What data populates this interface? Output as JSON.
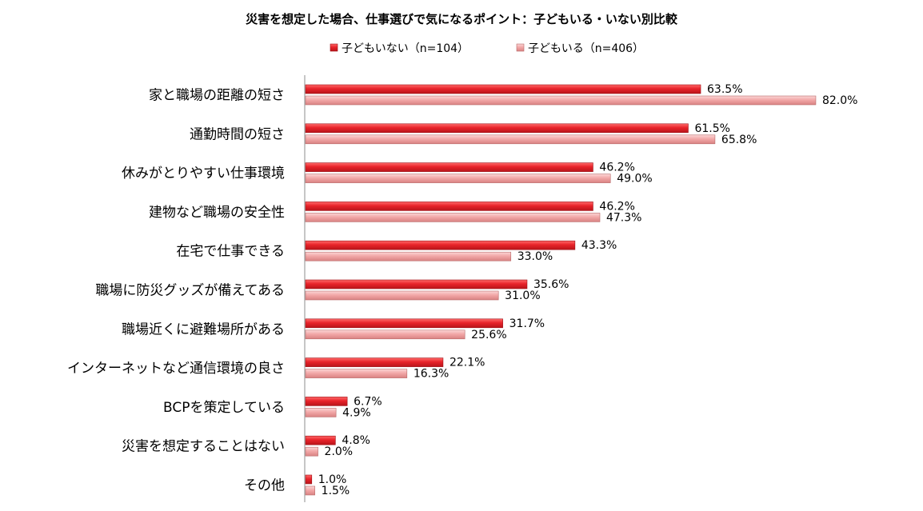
{
  "chart_data": {
    "type": "bar",
    "orientation": "horizontal",
    "title": "災害を想定した場合、仕事選びで気になるポイント：子どもいる・いない別比較",
    "xlabel": "",
    "ylabel": "",
    "xlim": [
      0,
      100
    ],
    "grid": false,
    "legend_position": "top",
    "value_suffix": "%",
    "categories": [
      "家と職場の距離の短さ",
      "通勤時間の短さ",
      "休みがとりやすい仕事環境",
      "建物など職場の安全性",
      "在宅で仕事できる",
      "職場に防災グッズが備えてある",
      "職場近くに避難場所がある",
      "インターネットなど通信環境の良さ",
      "BCPを策定している",
      "災害を想定することはない",
      "その他"
    ],
    "series": [
      {
        "name": "子どもいない（n=104）",
        "color": "#e8232a",
        "values": [
          63.5,
          61.5,
          46.2,
          46.2,
          43.3,
          35.6,
          31.7,
          22.1,
          6.7,
          4.8,
          1.0
        ]
      },
      {
        "name": "子どもいる（n=406）",
        "color": "#f2a8a8",
        "values": [
          82.0,
          65.8,
          49.0,
          47.3,
          33.0,
          31.0,
          25.6,
          16.3,
          4.9,
          2.0,
          1.5
        ]
      }
    ]
  }
}
